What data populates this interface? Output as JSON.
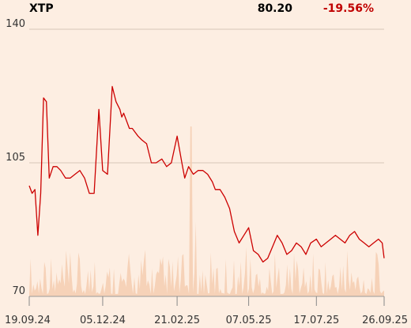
{
  "header": {
    "symbol": "XTP",
    "last_price": "80.20",
    "change_pct": "-19.56%"
  },
  "colors": {
    "line": "#cc0000",
    "volume": "#f4cdb0",
    "grid": "#c9b8aa",
    "background": "#fdeee2",
    "negative": "#c00000"
  },
  "chart_data": {
    "type": "line",
    "title": "",
    "xlabel": "",
    "ylabel": "",
    "ylim": [
      70,
      140
    ],
    "yticks": [
      70,
      105,
      140
    ],
    "x_tick_labels": [
      "19.09.24",
      "05.12.24",
      "21.02.25",
      "07.05.25",
      "17.07.25",
      "26.09.25"
    ],
    "x_range": [
      "19.09.24",
      "26.09.25"
    ],
    "grid": true,
    "series": [
      {
        "x": [
          "19.09.24",
          "22.09.24",
          "25.09.24",
          "28.09.24",
          "01.10.24",
          "04.10.24",
          "07.10.24",
          "10.10.24",
          "14.10.24",
          "18.10.24",
          "22.10.24",
          "27.10.24",
          "01.11.24",
          "06.11.24",
          "11.11.24",
          "16.11.24",
          "21.11.24",
          "26.11.24",
          "01.12.24",
          "05.12.24",
          "10.12.24",
          "15.12.24",
          "19.12.24",
          "23.12.24",
          "25.12.24",
          "27.12.24",
          "30.12.24",
          "02.01.25",
          "05.01.25",
          "08.01.25",
          "11.01.25",
          "15.01.25",
          "20.01.25",
          "25.01.25",
          "30.01.25",
          "05.02.25",
          "10.02.25",
          "15.02.25",
          "21.02.25",
          "26.02.25",
          "01.03.25",
          "05.03.25",
          "10.03.25",
          "15.03.25",
          "20.03.25",
          "25.03.25",
          "30.03.25",
          "02.04.25",
          "07.04.25",
          "12.04.25",
          "17.04.25",
          "22.04.25",
          "27.04.25",
          "02.05.25",
          "07.05.25",
          "12.05.25",
          "17.05.25",
          "22.05.25",
          "27.05.25",
          "01.06.25",
          "06.06.25",
          "11.06.25",
          "16.06.25",
          "21.06.25",
          "26.06.25",
          "01.07.25",
          "06.07.25",
          "11.07.25",
          "17.07.25",
          "22.07.25",
          "27.07.25",
          "01.08.25",
          "06.08.25",
          "11.08.25",
          "16.08.25",
          "21.08.25",
          "26.08.25",
          "31.08.25",
          "05.09.25",
          "10.09.25",
          "15.09.25",
          "20.09.25",
          "24.09.25",
          "26.09.25"
        ],
        "values": [
          99,
          97,
          98,
          86,
          97,
          122,
          121,
          101,
          104,
          104,
          103,
          101,
          101,
          102,
          103,
          101,
          97,
          97,
          119,
          103,
          102,
          125,
          121,
          119,
          117,
          118,
          116,
          114,
          114,
          113,
          112,
          111,
          110,
          105,
          105,
          106,
          104,
          105,
          112,
          105,
          101,
          104,
          102,
          103,
          103,
          102,
          100,
          98,
          98,
          96,
          93,
          87,
          84,
          86,
          88,
          82,
          81,
          79,
          80,
          83,
          86,
          84,
          81,
          82,
          84,
          83,
          81,
          84,
          85,
          83,
          84,
          85,
          86,
          85,
          84,
          86,
          87,
          85,
          84,
          83,
          84,
          85,
          84,
          80
        ]
      }
    ]
  }
}
